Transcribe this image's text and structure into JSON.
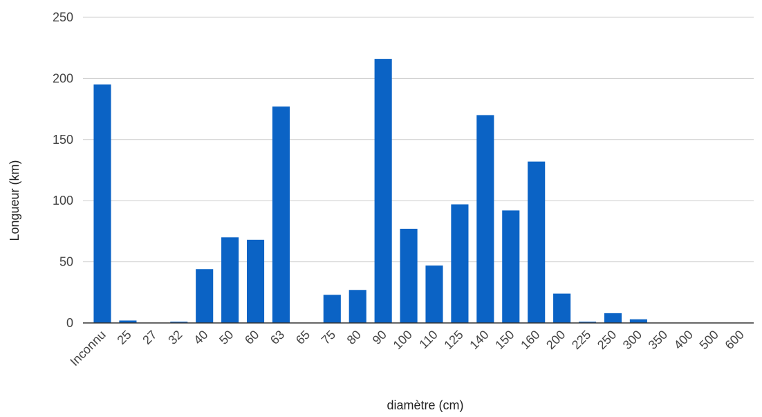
{
  "chart_data": {
    "type": "bar",
    "title": "",
    "xlabel": "diamètre (cm)",
    "ylabel": "Longueur (km)",
    "ylim": [
      0,
      250
    ],
    "yticks": [
      0,
      50,
      100,
      150,
      200,
      250
    ],
    "grid": true,
    "legend": "none",
    "bar_color": "#0b63c5",
    "categories": [
      "Inconnu",
      "25",
      "27",
      "32",
      "40",
      "50",
      "60",
      "63",
      "65",
      "75",
      "80",
      "90",
      "100",
      "110",
      "125",
      "140",
      "150",
      "160",
      "200",
      "225",
      "250",
      "300",
      "350",
      "400",
      "500",
      "600"
    ],
    "values": [
      195,
      2,
      0,
      1,
      44,
      70,
      68,
      177,
      0,
      23,
      27,
      216,
      77,
      47,
      97,
      170,
      92,
      132,
      24,
      1,
      8,
      3,
      0,
      0,
      0,
      0
    ]
  }
}
